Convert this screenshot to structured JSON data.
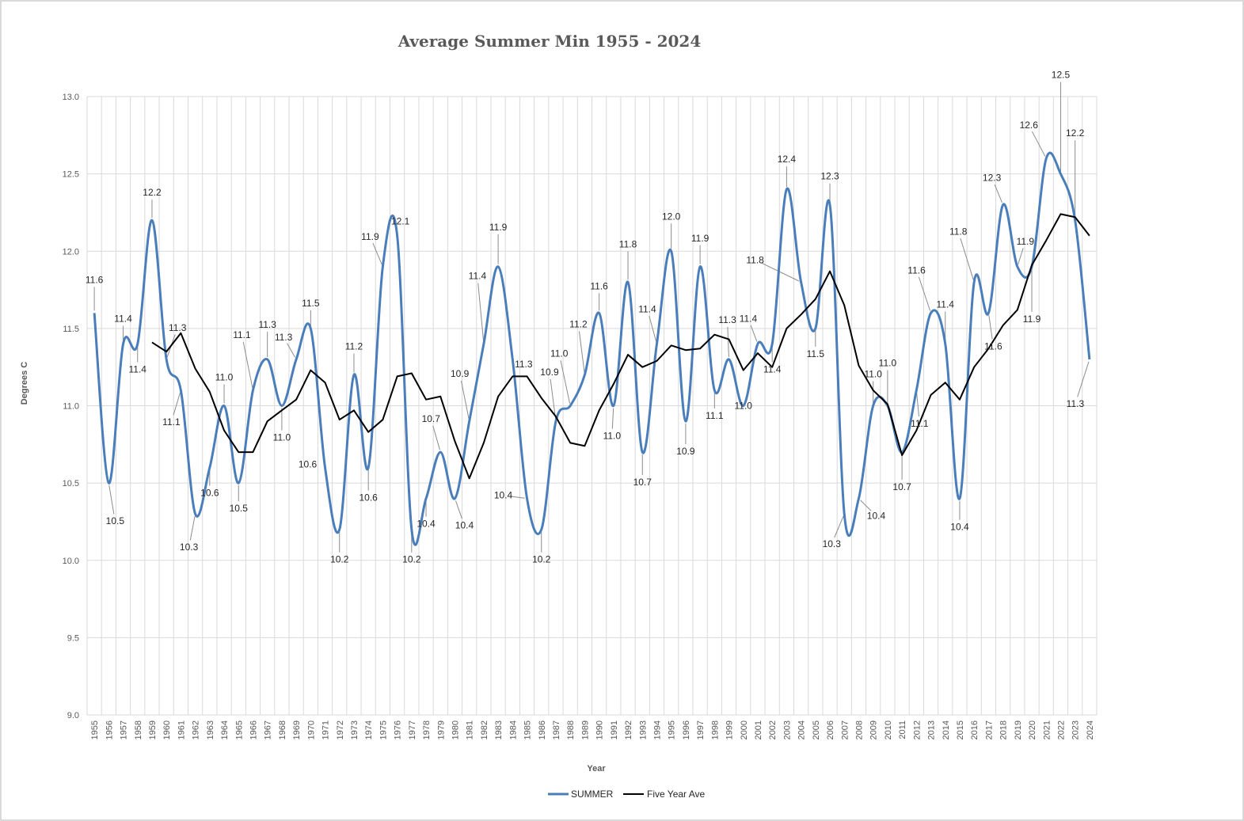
{
  "chart_data": {
    "type": "line",
    "title": "Average Summer Min 1955 - 2024",
    "xlabel": "Year",
    "ylabel": "Degrees C",
    "ylim": [
      9.0,
      13.0
    ],
    "yticks": [
      "9.0",
      "9.5",
      "10.0",
      "10.5",
      "11.0",
      "11.5",
      "12.0",
      "12.5",
      "13.0"
    ],
    "grid": true,
    "legend": "bottom",
    "x": [
      1955,
      1956,
      1957,
      1958,
      1959,
      1960,
      1961,
      1962,
      1963,
      1964,
      1965,
      1966,
      1967,
      1968,
      1969,
      1970,
      1971,
      1972,
      1973,
      1974,
      1975,
      1976,
      1977,
      1978,
      1979,
      1980,
      1981,
      1982,
      1983,
      1984,
      1985,
      1986,
      1987,
      1988,
      1989,
      1990,
      1991,
      1992,
      1993,
      1994,
      1995,
      1996,
      1997,
      1998,
      1999,
      2000,
      2001,
      2002,
      2003,
      2004,
      2005,
      2006,
      2007,
      2008,
      2009,
      2010,
      2011,
      2012,
      2013,
      2014,
      2015,
      2016,
      2017,
      2018,
      2019,
      2020,
      2021,
      2022,
      2023,
      2024
    ],
    "series": [
      {
        "name": "SUMMER",
        "color": "#4a7ebb",
        "smooth": true,
        "values": [
          11.6,
          10.5,
          11.4,
          11.4,
          12.2,
          11.3,
          11.1,
          10.3,
          10.6,
          11.0,
          10.5,
          11.1,
          11.3,
          11.0,
          11.3,
          11.5,
          10.6,
          10.2,
          11.2,
          10.6,
          11.9,
          12.1,
          10.2,
          10.4,
          10.7,
          10.4,
          10.9,
          11.4,
          11.9,
          11.3,
          10.4,
          10.2,
          10.9,
          11.0,
          11.2,
          11.6,
          11.0,
          11.8,
          10.7,
          11.4,
          12.0,
          10.9,
          11.9,
          11.1,
          11.3,
          11.0,
          11.4,
          11.4,
          12.4,
          11.8,
          11.5,
          12.3,
          10.3,
          10.4,
          11.0,
          11.0,
          10.7,
          11.1,
          11.6,
          11.4,
          10.4,
          11.8,
          11.6,
          12.3,
          11.9,
          11.9,
          12.6,
          12.5,
          12.2,
          11.3
        ]
      },
      {
        "name": "Five Year Ave",
        "color": "#000000",
        "smooth": false,
        "values": [
          null,
          null,
          null,
          null,
          11.41,
          11.35,
          11.47,
          11.24,
          11.09,
          10.84,
          10.7,
          10.7,
          10.9,
          10.97,
          11.04,
          11.23,
          11.15,
          10.91,
          10.97,
          10.83,
          10.91,
          11.19,
          11.21,
          11.04,
          11.06,
          10.77,
          10.53,
          10.76,
          11.06,
          11.19,
          11.19,
          11.05,
          10.93,
          10.76,
          10.74,
          10.97,
          11.14,
          11.33,
          11.25,
          11.29,
          11.39,
          11.36,
          11.37,
          11.46,
          11.43,
          11.23,
          11.34,
          11.25,
          11.5,
          11.59,
          11.69,
          11.87,
          11.65,
          11.26,
          11.1,
          11.01,
          10.68,
          10.84,
          11.07,
          11.15,
          11.04,
          11.25,
          11.37,
          11.52,
          11.62,
          11.91,
          12.07,
          12.24,
          12.22,
          12.1
        ]
      }
    ],
    "data_labels": [
      "11.6",
      "10.5",
      "11.4",
      "11.4",
      "12.2",
      "11.3",
      "11.1",
      "10.3",
      "10.6",
      "11.0",
      "10.5",
      "11.1",
      "11.3",
      "11.0",
      "11.3",
      "11.5",
      "10.6",
      "10.2",
      "11.2",
      "10.6",
      "11.9",
      "12.1",
      "10.2",
      "10.4",
      "10.7",
      "10.4",
      "10.9",
      "11.4",
      "11.9",
      "11.3",
      "10.4",
      "10.2",
      "10.9",
      "11.0",
      "11.2",
      "11.6",
      "11.0",
      "11.8",
      "10.7",
      "11.4",
      "12.0",
      "10.9",
      "11.9",
      "11.1",
      "11.3",
      "11.0",
      "11.4",
      "11.4",
      "12.4",
      "11.8",
      "11.5",
      "12.3",
      "10.3",
      "10.4",
      "11.0",
      "11.0",
      "10.7",
      "11.1",
      "11.6",
      "11.4",
      "10.4",
      "11.8",
      "11.6",
      "12.3",
      "11.9",
      "11.9",
      "12.6",
      "12.5",
      "12.2",
      "11.3"
    ]
  }
}
